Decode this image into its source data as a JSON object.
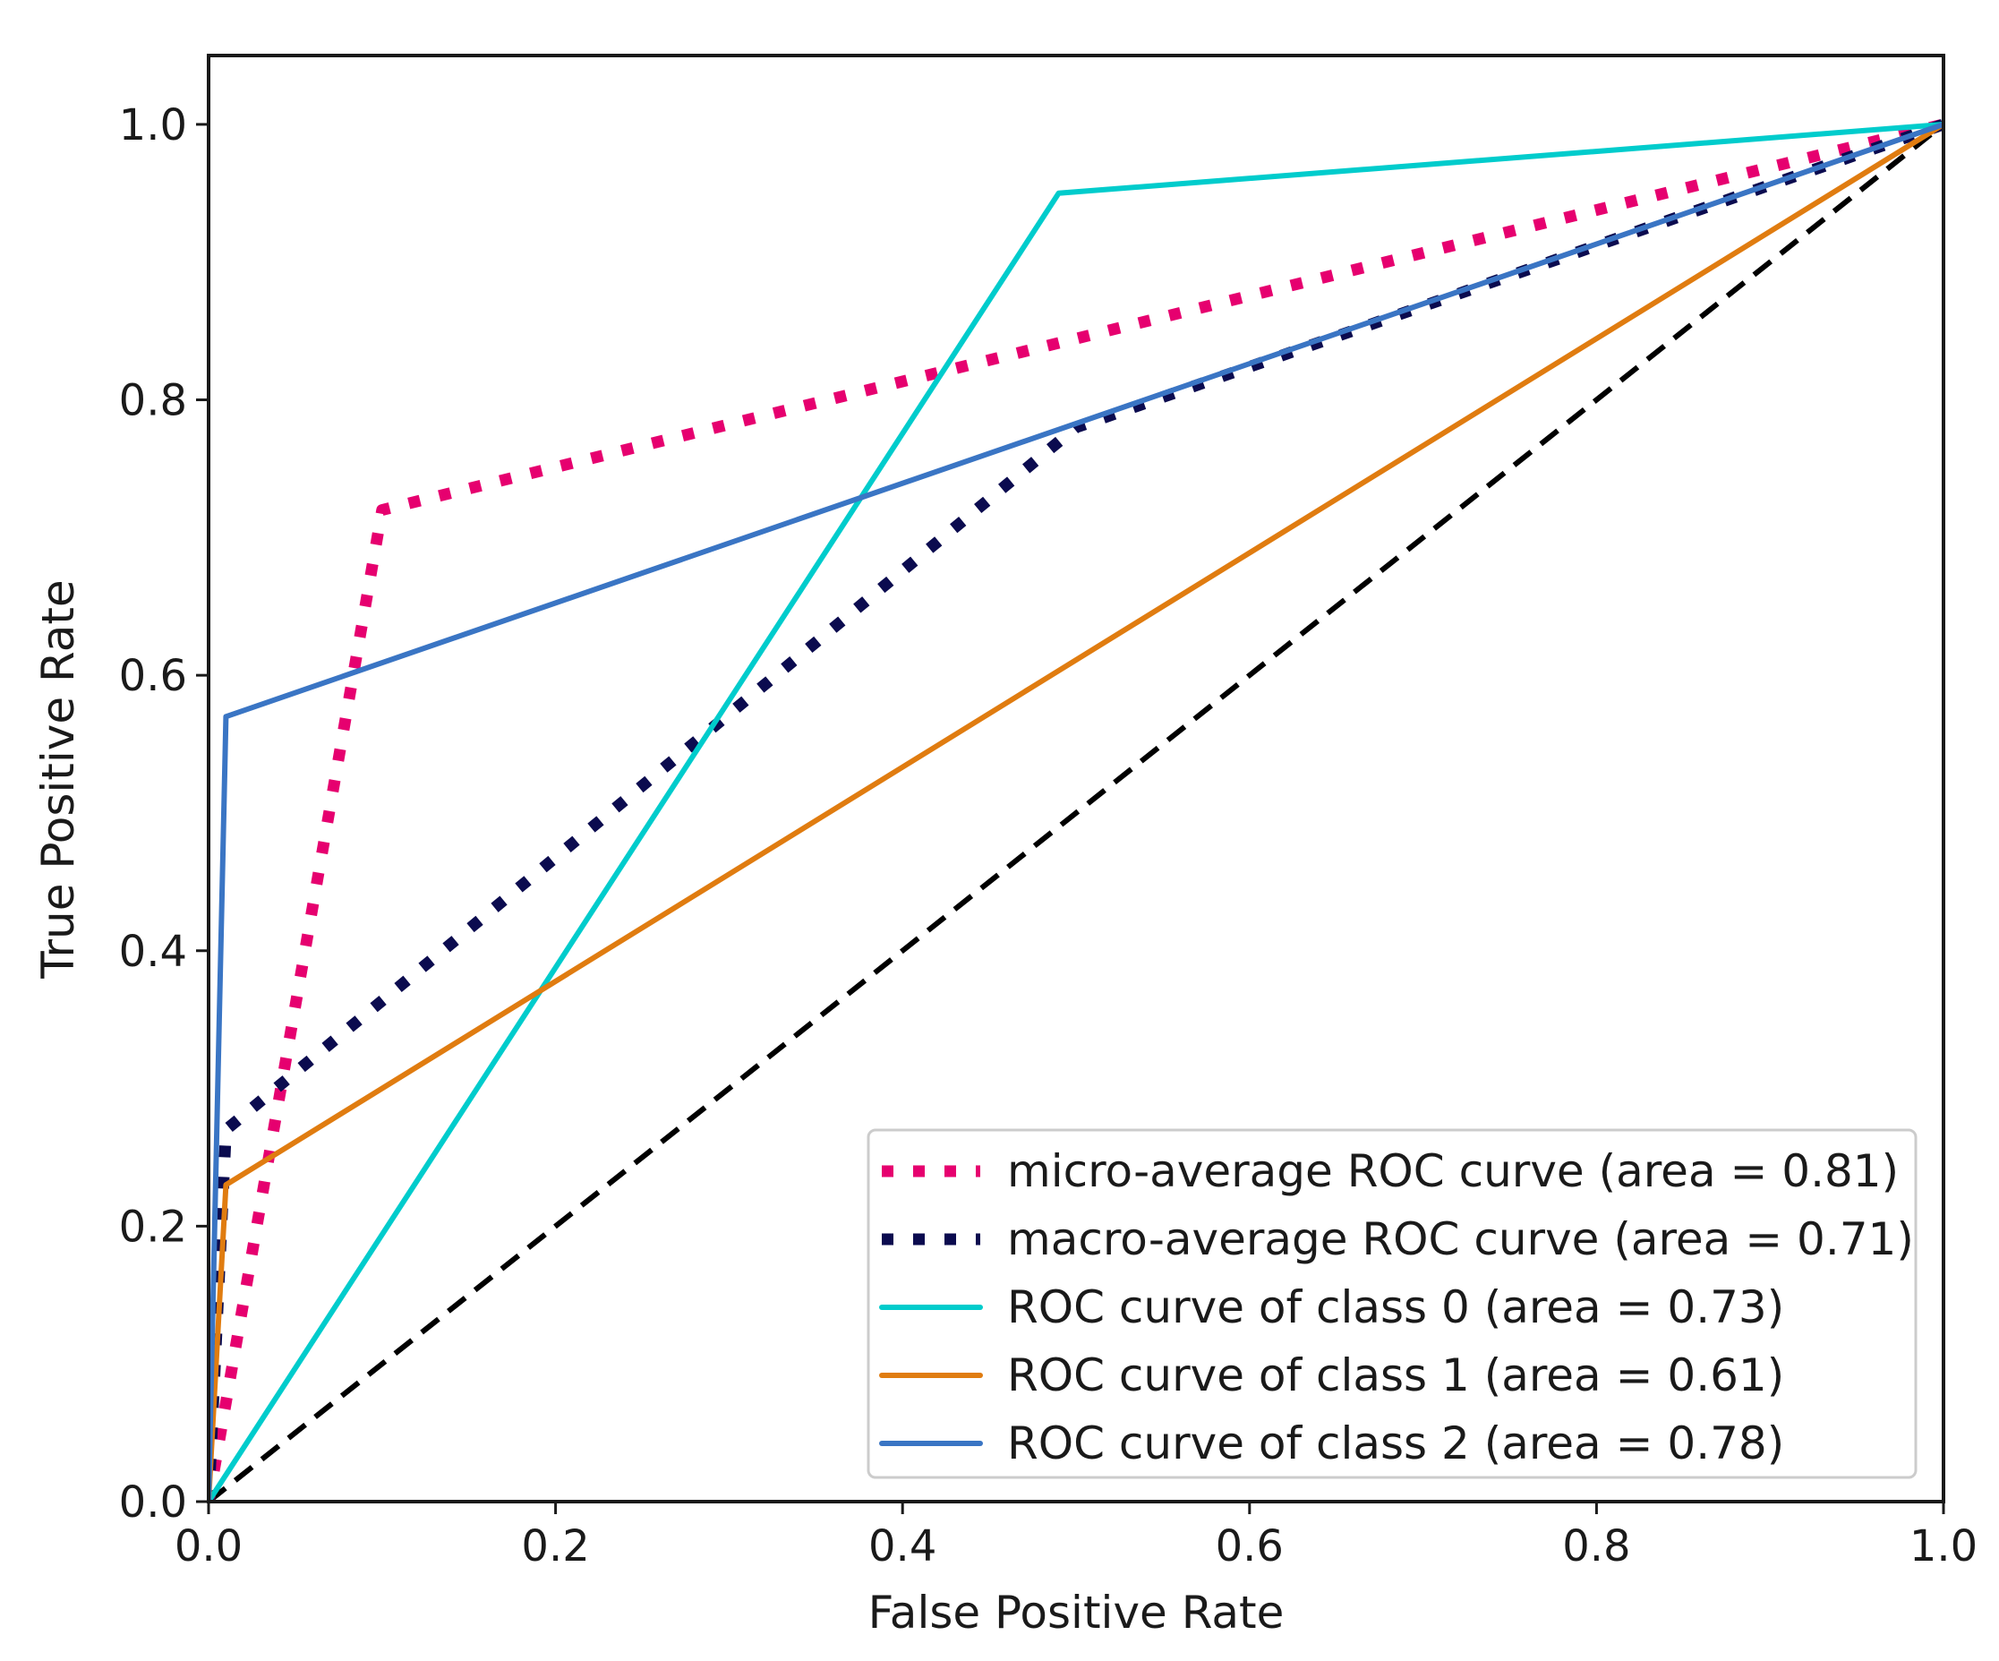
{
  "chart_data": {
    "type": "line",
    "title": "",
    "xlabel": "False Positive Rate",
    "ylabel": "True Positive Rate",
    "xlim": [
      0.0,
      1.0
    ],
    "ylim": [
      0.0,
      1.05
    ],
    "xticks": [
      "0.0",
      "0.2",
      "0.4",
      "0.6",
      "0.8",
      "1.0"
    ],
    "yticks": [
      "0.0",
      "0.2",
      "0.4",
      "0.6",
      "0.8",
      "1.0"
    ],
    "grid": false,
    "legend_position": "lower-right",
    "series": [
      {
        "name": "micro-average ROC curve (area = 0.81)",
        "color": "#e6006f",
        "style": "dotted",
        "x": [
          0.0,
          0.1,
          1.0
        ],
        "y": [
          0.0,
          0.72,
          1.0
        ]
      },
      {
        "name": "macro-average ROC curve (area = 0.71)",
        "color": "#0b0b4f",
        "style": "dotted",
        "x": [
          0.0,
          0.01,
          0.5,
          1.0
        ],
        "y": [
          0.0,
          0.27,
          0.78,
          1.0
        ]
      },
      {
        "name": "ROC curve of class 0 (area = 0.73)",
        "color": "#00cccc",
        "style": "solid",
        "x": [
          0.0,
          0.49,
          1.0
        ],
        "y": [
          0.0,
          0.95,
          1.0
        ]
      },
      {
        "name": "ROC curve of class 1 (area = 0.61)",
        "color": "#e07c10",
        "style": "solid",
        "x": [
          0.0,
          0.01,
          1.0
        ],
        "y": [
          0.0,
          0.23,
          1.0
        ]
      },
      {
        "name": "ROC curve of class 2 (area = 0.78)",
        "color": "#3a75c4",
        "style": "solid",
        "x": [
          0.0,
          0.01,
          1.0
        ],
        "y": [
          0.0,
          0.57,
          1.0
        ]
      }
    ],
    "reference_line": {
      "name": "chance diagonal",
      "color": "#000000",
      "style": "dashed",
      "x": [
        0.0,
        1.0
      ],
      "y": [
        0.0,
        1.0
      ]
    }
  }
}
